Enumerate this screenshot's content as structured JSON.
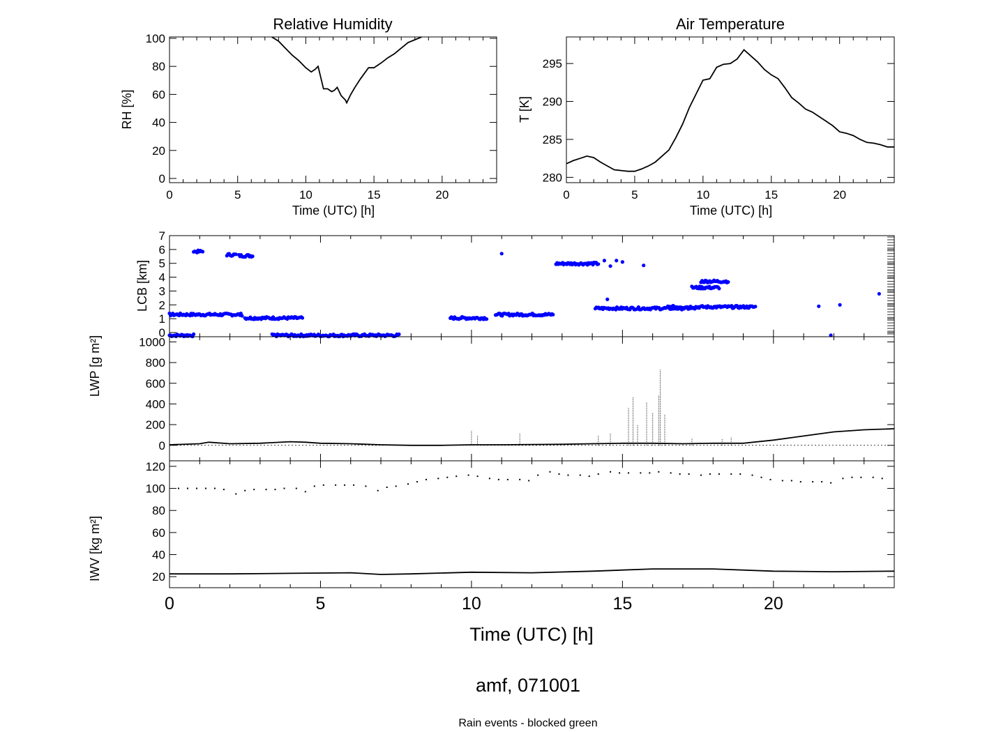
{
  "figure": {
    "title": "amf, 071001",
    "footnote": "Rain events - blocked green",
    "footnote_color": "#00ff00",
    "background": "#ffffff"
  },
  "chart_data": [
    {
      "id": "rh",
      "type": "line",
      "title": "Relative Humidity",
      "xlabel": "Time (UTC) [h]",
      "ylabel": "RH [%]",
      "xlim": [
        0,
        24
      ],
      "ylim": [
        -3,
        101
      ],
      "xticks": [
        0,
        5,
        10,
        15,
        20
      ],
      "yticks": [
        0,
        20,
        40,
        60,
        80,
        100
      ],
      "color": "#000000",
      "series": [
        {
          "x": [
            7.5,
            8.0,
            8.5,
            9.0,
            9.5,
            10.0,
            10.4,
            10.7,
            10.9,
            11.1,
            11.3,
            11.6,
            11.9,
            12.1,
            12.3,
            12.6,
            12.9,
            13.0,
            13.3,
            13.6,
            14.0,
            14.3,
            14.6,
            15.0,
            15.3,
            15.6,
            16.0,
            16.5,
            17.0,
            17.5,
            18.0,
            18.5
          ],
          "y": [
            101,
            98,
            93,
            88,
            84,
            79,
            76,
            78,
            80,
            72,
            64,
            64,
            62,
            63,
            65,
            59,
            56,
            54,
            60,
            65,
            71,
            75,
            79,
            79,
            81,
            83,
            86,
            89,
            93,
            97,
            99,
            101
          ]
        }
      ]
    },
    {
      "id": "temp",
      "type": "line",
      "title": "Air Temperature",
      "xlabel": "Time (UTC) [h]",
      "ylabel": "T [K]",
      "xlim": [
        0,
        24
      ],
      "ylim": [
        279.3,
        298.5
      ],
      "xticks": [
        0,
        5,
        10,
        15,
        20
      ],
      "yticks": [
        280,
        285,
        290,
        295
      ],
      "color": "#000000",
      "series": [
        {
          "x": [
            0,
            0.5,
            1.0,
            1.5,
            2.0,
            2.5,
            3.0,
            3.5,
            4.0,
            4.5,
            5.0,
            5.5,
            6.0,
            6.5,
            7.0,
            7.5,
            8.0,
            8.5,
            9.0,
            9.5,
            10.0,
            10.5,
            11.0,
            11.5,
            12.0,
            12.5,
            13.0,
            13.5,
            14.0,
            14.5,
            15.0,
            15.5,
            16.0,
            16.5,
            17.0,
            17.5,
            18.0,
            18.5,
            19.0,
            19.5,
            20.0,
            20.5,
            21.0,
            21.5,
            22.0,
            22.5,
            23.0,
            23.5,
            24.0
          ],
          "y": [
            281.8,
            282.2,
            282.5,
            282.8,
            282.6,
            282.0,
            281.5,
            281.0,
            280.9,
            280.8,
            280.8,
            281.1,
            281.5,
            282.0,
            282.8,
            283.6,
            285.2,
            287.0,
            289.2,
            291.0,
            292.8,
            293.0,
            294.5,
            294.9,
            295.0,
            295.6,
            296.8,
            296.0,
            295.2,
            294.2,
            293.5,
            293.0,
            291.8,
            290.5,
            289.8,
            289.0,
            288.6,
            288.0,
            287.4,
            286.8,
            286.0,
            285.8,
            285.5,
            285.0,
            284.6,
            284.5,
            284.3,
            284.0,
            284.0
          ]
        }
      ]
    },
    {
      "id": "lcb",
      "type": "scatter",
      "ylabel": "LCB [km]",
      "xlim": [
        0,
        24
      ],
      "ylim": [
        -0.3,
        7
      ],
      "yticks": [
        0,
        1,
        2,
        3,
        4,
        5,
        6,
        7
      ],
      "color": "#0000ff",
      "segments": [
        {
          "x0": 0.0,
          "x1": 0.8,
          "y": -0.2
        },
        {
          "x0": 0.0,
          "x1": 2.4,
          "y": 1.3
        },
        {
          "x0": 0.8,
          "x1": 1.1,
          "y": 5.85
        },
        {
          "x0": 1.9,
          "x1": 2.2,
          "y": 5.62
        },
        {
          "x0": 2.3,
          "x1": 2.75,
          "y": 5.55
        },
        {
          "x0": 2.5,
          "x1": 4.4,
          "y": 1.05
        },
        {
          "x0": 3.4,
          "x1": 7.6,
          "y": -0.2
        },
        {
          "x0": 9.3,
          "x1": 10.5,
          "y": 1.05
        },
        {
          "x0": 10.8,
          "x1": 12.7,
          "y": 1.3
        },
        {
          "x0": 12.8,
          "x1": 14.2,
          "y": 4.98
        },
        {
          "x0": 14.1,
          "x1": 17.5,
          "y": 1.75
        },
        {
          "x0": 16.5,
          "x1": 19.4,
          "y": 1.85
        },
        {
          "x0": 17.6,
          "x1": 18.5,
          "y": 3.7
        },
        {
          "x0": 17.3,
          "x1": 18.2,
          "y": 3.25
        }
      ],
      "points": [
        {
          "x": 1.0,
          "y": 5.9
        },
        {
          "x": 11.0,
          "y": 5.7
        },
        {
          "x": 14.4,
          "y": 5.2
        },
        {
          "x": 14.6,
          "y": 4.8
        },
        {
          "x": 14.8,
          "y": 5.2
        },
        {
          "x": 15.0,
          "y": 5.1
        },
        {
          "x": 15.7,
          "y": 4.85
        },
        {
          "x": 14.5,
          "y": 2.4
        },
        {
          "x": 21.5,
          "y": 1.9
        },
        {
          "x": 22.2,
          "y": 2.0
        },
        {
          "x": 23.5,
          "y": 2.8
        },
        {
          "x": 21.9,
          "y": -0.2
        }
      ]
    },
    {
      "id": "lwp",
      "type": "line",
      "ylabel": "LWP [g m²]",
      "xlim": [
        0,
        24
      ],
      "ylim": [
        -150,
        1050
      ],
      "yticks": [
        0,
        200,
        400,
        600,
        800,
        1000
      ],
      "color": "#000000",
      "series": [
        {
          "x": [
            0,
            1,
            1.3,
            2,
            3,
            4,
            4.5,
            5,
            6,
            7,
            8,
            9,
            10,
            11,
            12,
            13,
            14,
            15,
            16,
            17,
            18,
            19,
            20,
            21,
            22,
            23,
            24
          ],
          "y": [
            5,
            15,
            30,
            15,
            20,
            35,
            30,
            20,
            15,
            5,
            0,
            0,
            5,
            5,
            8,
            10,
            15,
            20,
            20,
            15,
            20,
            20,
            50,
            90,
            130,
            150,
            160
          ]
        }
      ],
      "spikes": [
        {
          "x": 10.0,
          "y": 140
        },
        {
          "x": 10.2,
          "y": 90
        },
        {
          "x": 11.6,
          "y": 120
        },
        {
          "x": 14.2,
          "y": 100
        },
        {
          "x": 14.6,
          "y": 120
        },
        {
          "x": 15.2,
          "y": 360
        },
        {
          "x": 15.35,
          "y": 470
        },
        {
          "x": 15.5,
          "y": 200
        },
        {
          "x": 15.8,
          "y": 420
        },
        {
          "x": 16.0,
          "y": 310
        },
        {
          "x": 16.2,
          "y": 480
        },
        {
          "x": 16.25,
          "y": 730
        },
        {
          "x": 16.4,
          "y": 300
        },
        {
          "x": 17.3,
          "y": 70
        },
        {
          "x": 18.3,
          "y": 60
        },
        {
          "x": 18.6,
          "y": 80
        }
      ]
    },
    {
      "id": "iwv",
      "type": "scatter",
      "ylabel": "IWV [kg m²]",
      "xlabel": "Time (UTC) [h]",
      "xlim": [
        0,
        24
      ],
      "ylim": [
        10,
        125
      ],
      "yticks": [
        20,
        40,
        60,
        80,
        100,
        120
      ],
      "xticks": [
        0,
        5,
        10,
        15,
        20
      ],
      "color": "#000000",
      "series": [
        {
          "name": "",
          "x": [
            0,
            2,
            4,
            6,
            7,
            8,
            10,
            12,
            14,
            16,
            18,
            20,
            22,
            24
          ],
          "y": [
            22.5,
            22.5,
            23,
            23.5,
            22,
            22.5,
            24,
            23.5,
            25,
            27,
            27,
            25,
            24.5,
            25
          ]
        }
      ],
      "dots": {
        "x": [
          0.3,
          0.6,
          0.9,
          1.2,
          1.5,
          1.8,
          2.2,
          2.5,
          2.8,
          3.2,
          3.5,
          3.8,
          4.2,
          4.5,
          4.8,
          5.1,
          5.5,
          5.8,
          6.1,
          6.5,
          6.9,
          7.2,
          7.5,
          7.9,
          8.2,
          8.5,
          8.9,
          9.2,
          9.5,
          9.9,
          10.2,
          10.6,
          10.9,
          11.2,
          11.6,
          11.9,
          12.2,
          12.6,
          12.9,
          13.2,
          13.6,
          13.9,
          14.2,
          14.6,
          14.9,
          15.2,
          15.6,
          15.9,
          16.2,
          16.6,
          16.9,
          17.2,
          17.6,
          17.9,
          18.2,
          18.6,
          18.9,
          19.3,
          19.6,
          19.9,
          20.3,
          20.6,
          20.9,
          21.3,
          21.6,
          21.9,
          22.3,
          22.6,
          22.9,
          23.3,
          23.6
        ],
        "y": [
          100,
          100,
          100,
          100,
          100,
          99,
          95,
          98,
          99,
          99,
          99,
          100,
          100,
          97,
          102,
          103,
          103,
          103,
          103,
          102,
          98,
          101,
          102,
          104,
          106,
          108,
          109,
          110,
          111,
          112,
          111,
          109,
          108,
          108,
          108,
          107,
          112,
          115,
          113,
          112,
          112,
          111,
          113,
          115,
          114,
          114,
          114,
          114,
          115,
          114,
          113,
          113,
          112,
          113,
          113,
          113,
          113,
          112,
          110,
          108,
          107,
          107,
          106,
          106,
          106,
          105,
          109,
          110,
          110,
          110,
          109
        ]
      }
    }
  ]
}
